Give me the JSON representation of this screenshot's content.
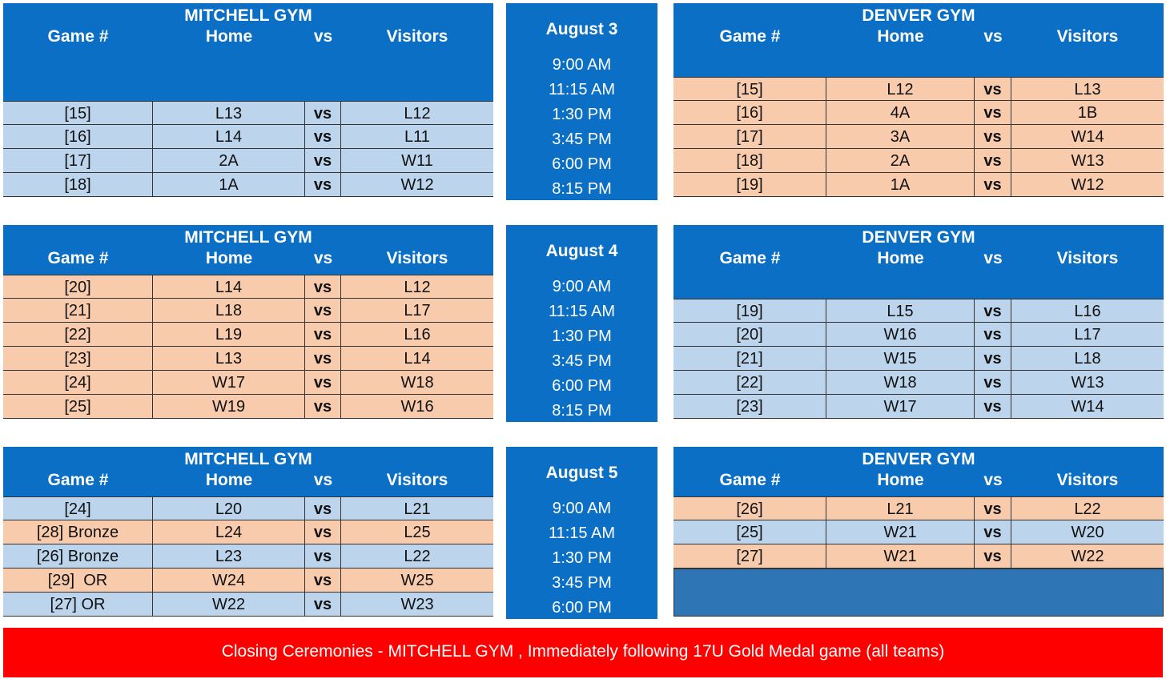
{
  "days": [
    {
      "date": "August 3",
      "times": [
        "9:00 AM",
        "11:15 AM",
        "1:30 PM",
        "3:45 PM",
        "6:00 PM",
        "8:15 PM"
      ],
      "left": {
        "gym": "MITCHELL GYM",
        "headers": [
          "Game #",
          "Home",
          "vs",
          "Visitors"
        ],
        "rows": [
          {
            "game": "[15]",
            "home": "L13",
            "vs": "vs",
            "visitor": "L12",
            "color": "blue"
          },
          {
            "game": "[16]",
            "home": "L14",
            "vs": "vs",
            "visitor": "L11",
            "color": "blue"
          },
          {
            "game": "[17]",
            "home": "2A",
            "vs": "vs",
            "visitor": "W11",
            "color": "blue"
          },
          {
            "game": "[18]",
            "home": "1A",
            "vs": "vs",
            "visitor": "W12",
            "color": "blue"
          }
        ]
      },
      "right": {
        "gym": "DENVER GYM",
        "headers": [
          "Game #",
          "Home",
          "vs",
          "Visitors"
        ],
        "rows": [
          {
            "game": "[15]",
            "home": "L12",
            "vs": "vs",
            "visitor": "L13",
            "color": "peach"
          },
          {
            "game": "[16]",
            "home": "4A",
            "vs": "vs",
            "visitor": "1B",
            "color": "peach"
          },
          {
            "game": "[17]",
            "home": "3A",
            "vs": "vs",
            "visitor": "W14",
            "color": "peach"
          },
          {
            "game": "[18]",
            "home": "2A",
            "vs": "vs",
            "visitor": "W13",
            "color": "peach"
          },
          {
            "game": "[19]",
            "home": "1A",
            "vs": "vs",
            "visitor": "W12",
            "color": "peach"
          }
        ]
      }
    },
    {
      "date": "August 4",
      "times": [
        "9:00 AM",
        "11:15 AM",
        "1:30 PM",
        "3:45 PM",
        "6:00 PM",
        "8:15 PM"
      ],
      "left": {
        "gym": "MITCHELL GYM",
        "headers": [
          "Game #",
          "Home",
          "vs",
          "Visitors"
        ],
        "rows": [
          {
            "game": "[20]",
            "home": "L14",
            "vs": "vs",
            "visitor": "L12",
            "color": "peach"
          },
          {
            "game": "[21]",
            "home": "L18",
            "vs": "vs",
            "visitor": "L17",
            "color": "peach"
          },
          {
            "game": "[22]",
            "home": "L19",
            "vs": "vs",
            "visitor": "L16",
            "color": "peach"
          },
          {
            "game": "[23]",
            "home": "L13",
            "vs": "vs",
            "visitor": "L14",
            "color": "peach"
          },
          {
            "game": "[24]",
            "home": "W17",
            "vs": "vs",
            "visitor": "W18",
            "color": "peach"
          },
          {
            "game": "[25]",
            "home": "W19",
            "vs": "vs",
            "visitor": "W16",
            "color": "peach"
          }
        ]
      },
      "right": {
        "gym": "DENVER GYM",
        "headers": [
          "Game #",
          "Home",
          "vs",
          "Visitors"
        ],
        "rows": [
          {
            "game": "[19]",
            "home": "L15",
            "vs": "vs",
            "visitor": "L16",
            "color": "blue"
          },
          {
            "game": "[20]",
            "home": "W16",
            "vs": "vs",
            "visitor": "L17",
            "color": "blue"
          },
          {
            "game": "[21]",
            "home": "W15",
            "vs": "vs",
            "visitor": "L18",
            "color": "blue"
          },
          {
            "game": "[22]",
            "home": "W18",
            "vs": "vs",
            "visitor": "W13",
            "color": "blue"
          },
          {
            "game": "[23]",
            "home": "W17",
            "vs": "vs",
            "visitor": "W14",
            "color": "blue"
          }
        ]
      }
    },
    {
      "date": "August 5",
      "times": [
        "9:00 AM",
        "11:15 AM",
        "1:30 PM",
        "3:45 PM",
        "6:00 PM"
      ],
      "left": {
        "gym": "MITCHELL GYM",
        "headers": [
          "Game #",
          "Home",
          "vs",
          "Visitors"
        ],
        "rows": [
          {
            "game": "[24]",
            "home": "L20",
            "vs": "vs",
            "visitor": "L21",
            "color": "blue"
          },
          {
            "game": "[28] Bronze",
            "home": "L24",
            "vs": "vs",
            "visitor": "L25",
            "color": "peach"
          },
          {
            "game": "[26] Bronze",
            "home": "L23",
            "vs": "vs",
            "visitor": "L22",
            "color": "blue"
          },
          {
            "game": "[29]  OR",
            "home": "W24",
            "vs": "vs",
            "visitor": "W25",
            "color": "peach"
          },
          {
            "game": "[27] OR",
            "home": "W22",
            "vs": "vs",
            "visitor": "W23",
            "color": "blue"
          }
        ]
      },
      "right": {
        "gym": "DENVER GYM",
        "headers": [
          "Game #",
          "Home",
          "vs",
          "Visitors"
        ],
        "rows": [
          {
            "game": "[26]",
            "home": "L21",
            "vs": "vs",
            "visitor": "L22",
            "color": "peach"
          },
          {
            "game": "[25]",
            "home": "W21",
            "vs": "vs",
            "visitor": "W20",
            "color": "blue"
          },
          {
            "game": "[27]",
            "home": "W21",
            "vs": "vs",
            "visitor": "W22",
            "color": "peach"
          }
        ]
      }
    }
  ],
  "footer": "Closing Ceremonies - MITCHELL GYM , Immediately following 17U Gold Medal game (all teams)"
}
